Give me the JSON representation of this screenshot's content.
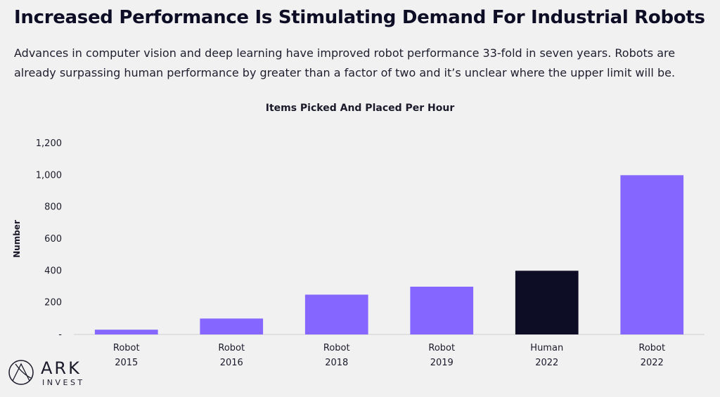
{
  "header": {
    "title": "Increased Performance Is Stimulating Demand For Industrial Robots",
    "subtitle": "Advances in computer vision and deep learning have improved robot performance 33-fold in seven years. Robots are already surpassing human performance by greater than a factor of two and it’s unclear where the upper limit will be."
  },
  "chart_data": {
    "type": "bar",
    "title": "Items Picked And Placed Per Hour",
    "ylabel": "Number",
    "xlabel": "",
    "ylim": [
      0,
      1200
    ],
    "yticks": [
      0,
      200,
      400,
      600,
      800,
      1000,
      1200
    ],
    "ytick_labels": [
      "-",
      "200",
      "400",
      "600",
      "800",
      "1,000",
      "1,200"
    ],
    "grid": false,
    "categories": [
      {
        "label": "Robot",
        "year": "2015"
      },
      {
        "label": "Robot",
        "year": "2016"
      },
      {
        "label": "Robot",
        "year": "2018"
      },
      {
        "label": "Robot",
        "year": "2019"
      },
      {
        "label": "Human",
        "year": "2022"
      },
      {
        "label": "Robot",
        "year": "2022"
      }
    ],
    "values": [
      30,
      100,
      250,
      300,
      400,
      1000
    ],
    "colors": [
      "#8566ff",
      "#8566ff",
      "#8566ff",
      "#8566ff",
      "#0d0d26",
      "#8566ff"
    ]
  },
  "logo": {
    "name": "ARK",
    "sub": "INVEST"
  }
}
